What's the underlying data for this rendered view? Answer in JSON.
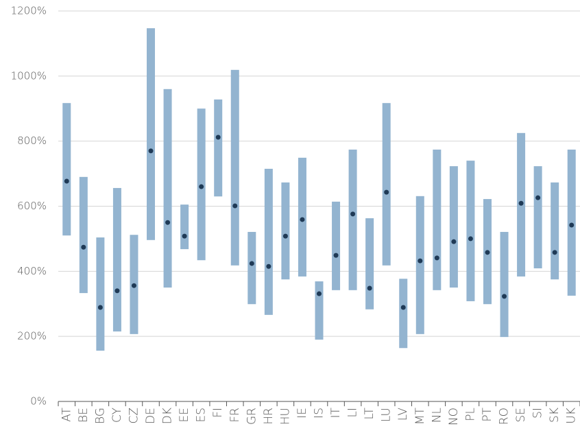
{
  "chart_data": {
    "type": "range",
    "categories": [
      "AT",
      "BE",
      "BG",
      "CY",
      "CZ",
      "DE",
      "DK",
      "EE",
      "ES",
      "FI",
      "FR",
      "GR",
      "HR",
      "HU",
      "IE",
      "IS",
      "IT",
      "LI",
      "LT",
      "LU",
      "LV",
      "MT",
      "NL",
      "NO",
      "PL",
      "PT",
      "RO",
      "SE",
      "SI",
      "SK",
      "UK"
    ],
    "low": [
      510,
      333,
      156,
      215,
      207,
      496,
      350,
      468,
      434,
      630,
      418,
      299,
      266,
      375,
      384,
      190,
      342,
      342,
      283,
      418,
      164,
      207,
      342,
      350,
      308,
      299,
      198,
      384,
      409,
      375,
      325
    ],
    "high": [
      917,
      690,
      504,
      656,
      512,
      1147,
      960,
      605,
      900,
      928,
      1019,
      521,
      715,
      673,
      749,
      369,
      614,
      774,
      563,
      917,
      377,
      631,
      774,
      723,
      740,
      622,
      521,
      825,
      723,
      673,
      774
    ],
    "values": [
      677,
      474,
      289,
      340,
      356,
      770,
      550,
      508,
      660,
      812,
      601,
      424,
      415,
      508,
      559,
      331,
      449,
      576,
      348,
      643,
      289,
      432,
      441,
      491,
      500,
      458,
      323,
      609,
      626,
      458,
      542
    ],
    "range_color": "#93b4d0",
    "color": "#1f3a56",
    "ylim": [
      0,
      1200
    ],
    "yticks": [
      {
        "value": 0,
        "label": "0%"
      },
      {
        "value": 200,
        "label": "200%"
      },
      {
        "value": 400,
        "label": "400%"
      },
      {
        "value": 600,
        "label": "600%"
      },
      {
        "value": 800,
        "label": "800%"
      },
      {
        "value": 1000,
        "label": "1000%"
      },
      {
        "value": 1200,
        "label": "1200%"
      }
    ],
    "grid": true
  }
}
